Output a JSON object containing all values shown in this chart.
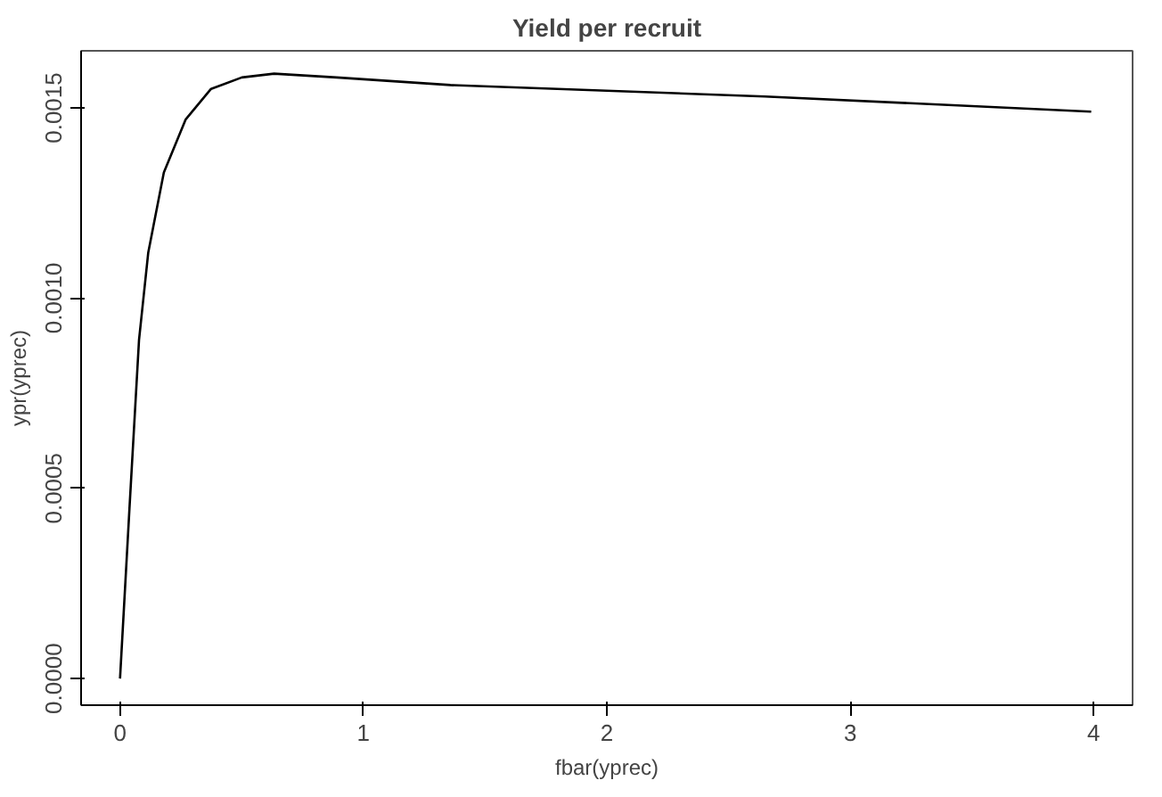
{
  "chart_data": {
    "type": "line",
    "title": "Yield per recruit",
    "xlabel": "fbar(yprec)",
    "ylabel": "ypr(yprec)",
    "x": [
      0,
      0.039,
      0.078,
      0.116,
      0.18,
      0.27,
      0.374,
      0.5,
      0.633,
      0.89,
      1.357,
      2.65,
      3.99
    ],
    "series": [
      {
        "color": "#000000",
        "values": [
          0,
          0.00045,
          0.00089,
          0.00112,
          0.00133,
          0.00147,
          0.00155,
          0.00158,
          0.00159,
          0.00158,
          0.00156,
          0.00153,
          0.00149
        ]
      }
    ],
    "xlim": [
      -0.16,
      4.16
    ],
    "ylim": [
      -7e-05,
      0.00165
    ],
    "xticks": [
      0,
      1,
      2,
      3,
      4
    ],
    "yticks": [
      {
        "value": 0,
        "label": "0.0000"
      },
      {
        "value": 0.0005,
        "label": "0.0005"
      },
      {
        "value": 0.001,
        "label": "0.0010"
      },
      {
        "value": 0.0015,
        "label": "0.0015"
      }
    ],
    "grid": false,
    "marker": "none",
    "line_style": "solid"
  }
}
